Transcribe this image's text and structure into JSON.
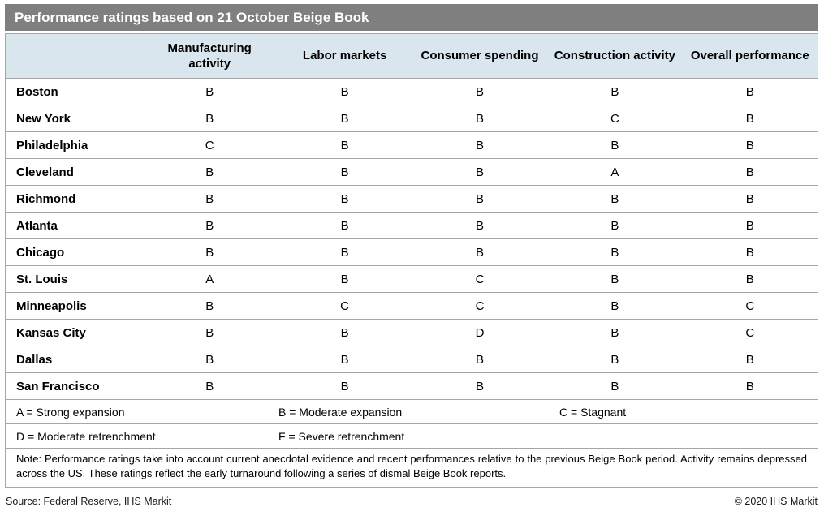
{
  "colors": {
    "title_bar_bg": "#7f7f7f",
    "title_text": "#ffffff",
    "header_row_bg": "#d9e6ee",
    "table_border": "#a6a6a6",
    "body_text": "#000000"
  },
  "chart_data": {
    "type": "table",
    "title": "Performance ratings based on 21 October Beige Book",
    "columns": [
      "Manufacturing activity",
      "Labor markets",
      "Consumer spending",
      "Construction activity",
      "Overall performance"
    ],
    "rows": [
      {
        "district": "Boston",
        "ratings": [
          "B",
          "B",
          "B",
          "B",
          "B"
        ]
      },
      {
        "district": "New York",
        "ratings": [
          "B",
          "B",
          "B",
          "C",
          "B"
        ]
      },
      {
        "district": "Philadelphia",
        "ratings": [
          "C",
          "B",
          "B",
          "B",
          "B"
        ]
      },
      {
        "district": "Cleveland",
        "ratings": [
          "B",
          "B",
          "B",
          "A",
          "B"
        ]
      },
      {
        "district": "Richmond",
        "ratings": [
          "B",
          "B",
          "B",
          "B",
          "B"
        ]
      },
      {
        "district": "Atlanta",
        "ratings": [
          "B",
          "B",
          "B",
          "B",
          "B"
        ]
      },
      {
        "district": "Chicago",
        "ratings": [
          "B",
          "B",
          "B",
          "B",
          "B"
        ]
      },
      {
        "district": "St. Louis",
        "ratings": [
          "A",
          "B",
          "C",
          "B",
          "B"
        ]
      },
      {
        "district": "Minneapolis",
        "ratings": [
          "B",
          "C",
          "C",
          "B",
          "C"
        ]
      },
      {
        "district": "Kansas City",
        "ratings": [
          "B",
          "B",
          "D",
          "B",
          "C"
        ]
      },
      {
        "district": "Dallas",
        "ratings": [
          "B",
          "B",
          "B",
          "B",
          "B"
        ]
      },
      {
        "district": "San Francisco",
        "ratings": [
          "B",
          "B",
          "B",
          "B",
          "B"
        ]
      }
    ],
    "legend": {
      "row1": [
        "A = Strong expansion",
        "B = Moderate expansion",
        "C = Stagnant"
      ],
      "row2": [
        "D = Moderate retrenchment",
        "F = Severe retrenchment",
        ""
      ]
    },
    "note": "Note: Performance ratings take into account current anecdotal evidence and recent performances relative to the previous Beige Book period. Activity remains depressed across the US. These ratings reflect the early turnaround following a series of dismal Beige Book reports.",
    "source": "Source: Federal Reserve, IHS Markit",
    "copyright": "© 2020 IHS Markit"
  }
}
